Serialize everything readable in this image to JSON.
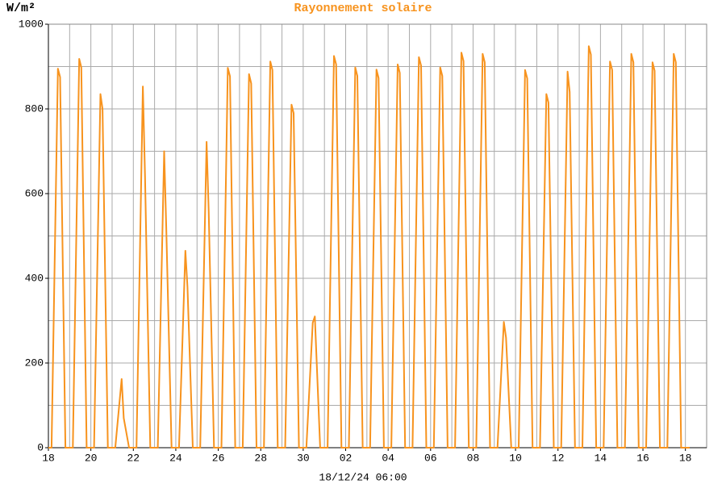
{
  "chart_data": {
    "type": "line",
    "title": "Rayonnement solaire",
    "ylabel": "W/m²",
    "xlabel": "18/12/24 06:00",
    "color": "#f7931e",
    "grid": true,
    "xlim": [
      0,
      31
    ],
    "ylim": [
      0,
      1000
    ],
    "yticks": [
      0,
      200,
      400,
      600,
      800,
      1000
    ],
    "minor_yticks": [
      100,
      300,
      500,
      700,
      900
    ],
    "xticks": [
      {
        "value": 0,
        "label": "18"
      },
      {
        "value": 2,
        "label": "20"
      },
      {
        "value": 4,
        "label": "22"
      },
      {
        "value": 6,
        "label": "24"
      },
      {
        "value": 8,
        "label": "26"
      },
      {
        "value": 10,
        "label": "28"
      },
      {
        "value": 12,
        "label": "30"
      },
      {
        "value": 14,
        "label": "02"
      },
      {
        "value": 16,
        "label": "04"
      },
      {
        "value": 18,
        "label": "06"
      },
      {
        "value": 20,
        "label": "08"
      },
      {
        "value": 22,
        "label": "10"
      },
      {
        "value": 24,
        "label": "12"
      },
      {
        "value": 26,
        "label": "14"
      },
      {
        "value": 28,
        "label": "16"
      },
      {
        "value": 30,
        "label": "18"
      }
    ],
    "minor_xticks": [
      1,
      3,
      5,
      7,
      9,
      11,
      13,
      15,
      17,
      19,
      21,
      23,
      25,
      27,
      29,
      31
    ],
    "x": [
      0,
      0.15,
      0.45,
      0.55,
      0.8,
      1.15,
      1.45,
      1.55,
      1.8,
      2.15,
      2.45,
      2.55,
      2.8,
      3.15,
      3.45,
      3.55,
      3.8,
      4.15,
      4.45,
      4.55,
      4.8,
      5.15,
      5.45,
      5.55,
      5.8,
      6.15,
      6.45,
      6.55,
      6.8,
      7.15,
      7.45,
      7.55,
      7.8,
      8.15,
      8.45,
      8.55,
      8.8,
      9.15,
      9.45,
      9.55,
      9.8,
      10.15,
      10.45,
      10.55,
      10.8,
      11.15,
      11.45,
      11.55,
      11.8,
      12.15,
      12.45,
      12.55,
      12.8,
      13.15,
      13.45,
      13.55,
      13.8,
      14.15,
      14.45,
      14.55,
      14.8,
      15.15,
      15.45,
      15.55,
      15.8,
      16.15,
      16.45,
      16.55,
      16.8,
      17.15,
      17.45,
      17.55,
      17.8,
      18.15,
      18.45,
      18.55,
      18.8,
      19.15,
      19.45,
      19.55,
      19.8,
      20.15,
      20.45,
      20.55,
      20.8,
      21.15,
      21.45,
      21.55,
      21.8,
      22.15,
      22.45,
      22.55,
      22.8,
      23.15,
      23.45,
      23.55,
      23.8,
      24.15,
      24.45,
      24.55,
      24.8,
      25.15,
      25.45,
      25.55,
      25.8,
      26.15,
      26.45,
      26.55,
      26.8,
      27.15,
      27.45,
      27.55,
      27.8,
      28.15,
      28.45,
      28.55,
      28.8,
      29.15,
      29.45,
      29.55,
      29.8,
      30.2
    ],
    "values": [
      0,
      0,
      895,
      875,
      0,
      0,
      918,
      898,
      0,
      0,
      835,
      800,
      0,
      0,
      162,
      70,
      0,
      0,
      853,
      640,
      0,
      0,
      700,
      520,
      0,
      0,
      465,
      380,
      0,
      0,
      722,
      560,
      0,
      0,
      897,
      877,
      0,
      0,
      882,
      860,
      0,
      0,
      912,
      892,
      0,
      0,
      810,
      790,
      0,
      0,
      295,
      310,
      0,
      0,
      925,
      905,
      0,
      0,
      898,
      878,
      0,
      0,
      893,
      873,
      0,
      0,
      905,
      885,
      0,
      0,
      922,
      902,
      0,
      0,
      898,
      878,
      0,
      0,
      933,
      913,
      0,
      0,
      930,
      910,
      0,
      0,
      297,
      260,
      0,
      0,
      892,
      872,
      0,
      0,
      835,
      815,
      0,
      0,
      888,
      840,
      0,
      0,
      948,
      928,
      0,
      0,
      912,
      892,
      0,
      0,
      930,
      910,
      0,
      0,
      910,
      890,
      0,
      0,
      930,
      910,
      0,
      0
    ]
  }
}
